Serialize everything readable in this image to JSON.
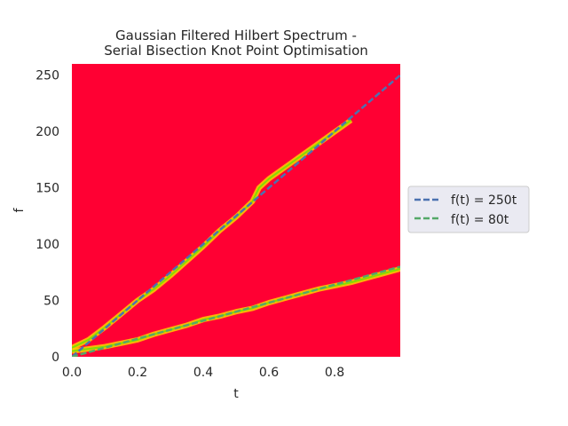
{
  "chart_data": {
    "type": "heatmap",
    "title_lines": [
      "Gaussian Filtered Hilbert Spectrum -",
      "Serial Bisection Knot Point Optimisation"
    ],
    "xlabel": "t",
    "ylabel": "f",
    "xlim": [
      0,
      1
    ],
    "ylim": [
      0,
      260
    ],
    "xticks": [
      0.0,
      0.2,
      0.4,
      0.6,
      0.8
    ],
    "xtick_labels": [
      "0.0",
      "0.2",
      "0.4",
      "0.6",
      "0.8"
    ],
    "yticks": [
      0,
      50,
      100,
      150,
      200,
      250
    ],
    "ytick_labels": [
      "0",
      "50",
      "100",
      "150",
      "200",
      "250"
    ],
    "background_color": "#ff0033",
    "legend_position": "right",
    "series": [
      {
        "name": "f(t) = 250t",
        "slope": 250,
        "color": "#4c72b0",
        "style": "dashed"
      },
      {
        "name": "f(t) = 80t",
        "slope": 80,
        "color": "#55a868",
        "style": "dashed"
      }
    ],
    "heat_ridges": [
      {
        "t": [
          0.0,
          0.05,
          0.1,
          0.15,
          0.2,
          0.25,
          0.3,
          0.35,
          0.4,
          0.45,
          0.5,
          0.55,
          0.57,
          0.6,
          0.85
        ],
        "f": [
          8,
          15,
          26,
          38,
          50,
          60,
          72,
          85,
          98,
          112,
          124,
          138,
          150,
          158,
          210
        ]
      },
      {
        "t": [
          0.0,
          0.05,
          0.1,
          0.15,
          0.2,
          0.25,
          0.3,
          0.35,
          0.4,
          0.45,
          0.5,
          0.55,
          0.6,
          0.65,
          0.7,
          0.75,
          0.8,
          0.85,
          0.9,
          0.95,
          1.0
        ],
        "f": [
          5,
          7,
          9,
          12,
          15,
          20,
          24,
          28,
          33,
          36,
          40,
          43,
          48,
          52,
          56,
          60,
          63,
          66,
          70,
          74,
          78
        ]
      }
    ]
  }
}
